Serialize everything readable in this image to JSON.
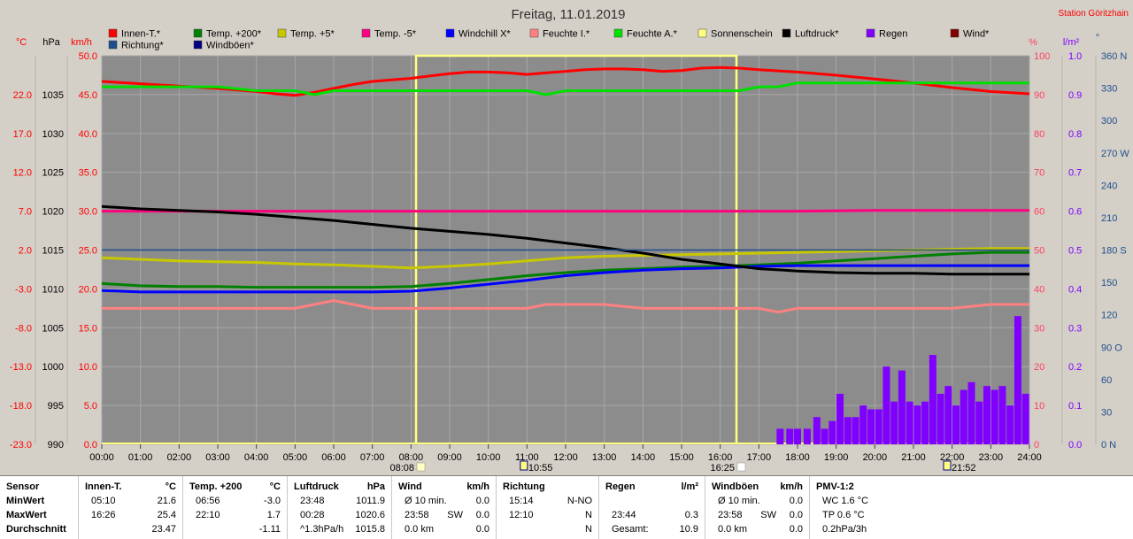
{
  "title": "Freitag, 11.01.2019",
  "station": "Station Göritzhain",
  "legend": [
    {
      "label": "Innen-T.*",
      "color": "#ff0000"
    },
    {
      "label": "Temp. +200*",
      "color": "#008000"
    },
    {
      "label": "Temp. +5*",
      "color": "#c8c800"
    },
    {
      "label": "Temp. -5*",
      "color": "#ff0080"
    },
    {
      "label": "Windchill X*",
      "color": "#0000ff"
    },
    {
      "label": "Feuchte I.*",
      "color": "#ff8080"
    },
    {
      "label": "Feuchte A.*",
      "color": "#00e000"
    },
    {
      "label": "Sonnenschein",
      "color": "#ffff80"
    },
    {
      "label": "Luftdruck*",
      "color": "#000000"
    },
    {
      "label": "Regen",
      "color": "#8000ff"
    },
    {
      "label": "Wind*",
      "color": "#800000"
    },
    {
      "label": "Richtung*",
      "color": "#1f4e8c"
    },
    {
      "label": "Windböen*",
      "color": "#000080"
    }
  ],
  "axes": {
    "temp": {
      "unit": "°C",
      "ticks": [
        "22.0",
        "17.0",
        "12.0",
        "7.0",
        "2.0",
        "-3.0",
        "-8.0",
        "-13.0",
        "-18.0",
        "-23.0"
      ],
      "min": -23.0,
      "max": 27.0,
      "color": "#ff0000"
    },
    "pressure": {
      "unit": "hPa",
      "ticks": [
        "1035",
        "1030",
        "1025",
        "1020",
        "1015",
        "1010",
        "1005",
        "1000",
        "995",
        "990"
      ],
      "min": 990,
      "max": 1040,
      "color": "#000000"
    },
    "wind": {
      "unit": "km/h",
      "ticks": [
        "50.0",
        "45.0",
        "40.0",
        "35.0",
        "30.0",
        "25.0",
        "20.0",
        "15.0",
        "10.0",
        "5.0",
        "0.0"
      ],
      "min": 0,
      "max": 50,
      "color": "#ff0000"
    },
    "humidity": {
      "unit": "%",
      "ticks": [
        "100",
        "90",
        "80",
        "70",
        "60",
        "50",
        "40",
        "30",
        "20",
        "10",
        "0"
      ],
      "min": 0,
      "max": 100,
      "color": "#ff4060"
    },
    "rain": {
      "unit": "l/m²",
      "ticks": [
        "1.0",
        "0.9",
        "0.8",
        "0.7",
        "0.6",
        "0.5",
        "0.4",
        "0.3",
        "0.2",
        "0.1",
        "0.0"
      ],
      "min": 0,
      "max": 1.0,
      "color": "#8000ff"
    },
    "direction": {
      "unit": "°",
      "ticks": [
        "360 N",
        "330",
        "300",
        "270 W",
        "240",
        "210",
        "180 S",
        "150",
        "120",
        "90 O",
        "60",
        "30",
        "0 N"
      ],
      "min": 0,
      "max": 360,
      "color": "#1f4e8c"
    },
    "time": {
      "ticks": [
        "00:00",
        "01:00",
        "02:00",
        "03:00",
        "04:00",
        "05:00",
        "06:00",
        "07:00",
        "08:00",
        "09:00",
        "10:00",
        "11:00",
        "12:00",
        "13:00",
        "14:00",
        "15:00",
        "16:00",
        "17:00",
        "18:00",
        "19:00",
        "20:00",
        "21:00",
        "22:00",
        "23:00",
        "24:00"
      ],
      "min": 0,
      "max": 24
    }
  },
  "time_markers": [
    {
      "label": "08:08",
      "hour": 8.13
    },
    {
      "label": "10:55",
      "hour": 10.92
    },
    {
      "label": "16:25",
      "hour": 16.42
    },
    {
      "label": "21:52",
      "hour": 21.87
    }
  ],
  "chart_data": {
    "type": "line",
    "x_unit": "hour",
    "series": [
      {
        "name": "Innen-T.*",
        "axis": "temp",
        "color": "#ff0000",
        "x": [
          0,
          1,
          2,
          3,
          4,
          4.5,
          5,
          5.5,
          6,
          6.5,
          7,
          7.5,
          8,
          8.5,
          9,
          9.5,
          10,
          10.5,
          11,
          11.5,
          12,
          12.5,
          13,
          13.5,
          14,
          14.5,
          15,
          15.5,
          16,
          16.5,
          17,
          18,
          19,
          20,
          21,
          22,
          23,
          24
        ],
        "values": [
          23.7,
          23.4,
          23.1,
          22.8,
          22.4,
          22.1,
          21.9,
          22.3,
          22.8,
          23.3,
          23.7,
          23.9,
          24.1,
          24.4,
          24.7,
          24.9,
          24.9,
          24.8,
          24.6,
          24.8,
          25.0,
          25.2,
          25.3,
          25.3,
          25.2,
          25.0,
          25.1,
          25.4,
          25.5,
          25.4,
          25.2,
          24.9,
          24.5,
          24.0,
          23.5,
          22.9,
          22.4,
          22.1
        ]
      },
      {
        "name": "Temp. +200*",
        "axis": "temp",
        "color": "#008000",
        "x": [
          0,
          1,
          2,
          3,
          4,
          5,
          6,
          7,
          8,
          9,
          10,
          11,
          12,
          13,
          14,
          15,
          16,
          17,
          18,
          19,
          20,
          21,
          22,
          23,
          24
        ],
        "values": [
          -2.3,
          -2.6,
          -2.7,
          -2.7,
          -2.8,
          -2.8,
          -2.8,
          -2.8,
          -2.7,
          -2.3,
          -1.8,
          -1.3,
          -0.9,
          -0.6,
          -0.4,
          -0.2,
          -0.1,
          0.1,
          0.3,
          0.6,
          0.9,
          1.2,
          1.5,
          1.7,
          1.7
        ]
      },
      {
        "name": "Temp. +5*",
        "axis": "temp",
        "color": "#c8c800",
        "x": [
          0,
          1,
          2,
          3,
          4,
          5,
          6,
          7,
          8,
          9,
          10,
          11,
          12,
          13,
          14,
          15,
          16,
          17,
          18,
          19,
          20,
          21,
          22,
          23,
          24
        ],
        "values": [
          1.0,
          0.8,
          0.6,
          0.5,
          0.4,
          0.2,
          0.1,
          -0.1,
          -0.3,
          -0.1,
          0.2,
          0.6,
          1.0,
          1.2,
          1.3,
          1.4,
          1.5,
          1.6,
          1.7,
          1.8,
          1.9,
          2.0,
          2.1,
          2.2,
          2.2
        ]
      },
      {
        "name": "Temp. -5*",
        "axis": "temp",
        "color": "#ff0080",
        "x": [
          0,
          2,
          4,
          6,
          8,
          10,
          12,
          14,
          16,
          18,
          20,
          22,
          24
        ],
        "values": [
          7.0,
          7.0,
          7.0,
          7.0,
          7.0,
          7.0,
          7.0,
          7.0,
          7.0,
          7.0,
          7.1,
          7.1,
          7.1
        ]
      },
      {
        "name": "Windchill X*",
        "axis": "temp",
        "color": "#0000ff",
        "x": [
          0,
          1,
          2,
          3,
          4,
          5,
          6,
          7,
          8,
          9,
          10,
          11,
          12,
          13,
          14,
          15,
          16,
          17,
          18,
          19,
          20,
          21,
          22,
          23,
          24
        ],
        "values": [
          -3.2,
          -3.4,
          -3.4,
          -3.4,
          -3.4,
          -3.4,
          -3.4,
          -3.4,
          -3.3,
          -2.9,
          -2.4,
          -1.9,
          -1.3,
          -0.9,
          -0.6,
          -0.4,
          -0.3,
          -0.1,
          0.0,
          0.0,
          0.0,
          0.0,
          0.0,
          0.0,
          0.0
        ]
      },
      {
        "name": "Feuchte I.*",
        "axis": "humidity",
        "color": "#ff8080",
        "x": [
          0,
          2,
          4,
          5,
          5.5,
          6,
          6.5,
          7,
          8,
          9,
          10,
          10.5,
          11,
          11.5,
          12,
          13,
          14,
          15,
          16,
          16.5,
          17,
          17.5,
          18,
          19,
          20,
          21,
          22,
          23,
          24
        ],
        "values": [
          35,
          35,
          35,
          35,
          36,
          37,
          36,
          35,
          35,
          35,
          35,
          35,
          35,
          36,
          36,
          36,
          35,
          35,
          35,
          35,
          35,
          34,
          35,
          35,
          35,
          35,
          35,
          36,
          36
        ]
      },
      {
        "name": "Feuchte A.*",
        "axis": "humidity",
        "color": "#00e000",
        "x": [
          0,
          1,
          2,
          3,
          4,
          5,
          5.5,
          6,
          7,
          8,
          9,
          10,
          11,
          11.5,
          12,
          13,
          14,
          15,
          16,
          16.5,
          17,
          17.5,
          18,
          19,
          20,
          21,
          22,
          23,
          24
        ],
        "values": [
          92,
          92,
          92,
          92,
          91,
          91,
          90,
          91,
          91,
          91,
          91,
          91,
          91,
          90,
          91,
          91,
          91,
          91,
          91,
          91,
          92,
          92,
          93,
          93,
          93,
          93,
          93,
          93,
          93
        ]
      },
      {
        "name": "Luftdruck*",
        "axis": "pressure",
        "color": "#000000",
        "x": [
          0,
          1,
          2,
          3,
          4,
          5,
          6,
          7,
          8,
          9,
          10,
          11,
          12,
          13,
          14,
          15,
          16,
          17,
          18,
          19,
          20,
          21,
          22,
          23,
          24
        ],
        "values": [
          1020.6,
          1020.3,
          1020.1,
          1019.9,
          1019.6,
          1019.2,
          1018.8,
          1018.3,
          1017.8,
          1017.4,
          1017.0,
          1016.5,
          1015.9,
          1015.3,
          1014.6,
          1013.8,
          1013.2,
          1012.6,
          1012.3,
          1012.1,
          1012.0,
          1012.0,
          1011.9,
          1011.9,
          1011.9
        ]
      },
      {
        "name": "Richtung*",
        "axis": "direction",
        "color": "#1f4e8c",
        "x": [
          0,
          24
        ],
        "values": [
          180,
          180
        ]
      }
    ],
    "sunshine": {
      "name": "Sonnenschein",
      "color": "#ffff80",
      "start": 8.13,
      "end": 16.42,
      "level": 100,
      "axis": "humidity"
    },
    "rain_bars": {
      "name": "Regen",
      "axis": "rain",
      "color": "#8000ff",
      "x": [
        17.55,
        17.8,
        18.0,
        18.25,
        18.5,
        18.7,
        18.9,
        19.1,
        19.3,
        19.5,
        19.7,
        19.9,
        20.1,
        20.3,
        20.5,
        20.7,
        20.9,
        21.1,
        21.3,
        21.5,
        21.7,
        21.9,
        22.1,
        22.3,
        22.5,
        22.7,
        22.9,
        23.1,
        23.3,
        23.5,
        23.7,
        23.9
      ],
      "values": [
        0.04,
        0.04,
        0.04,
        0.04,
        0.07,
        0.04,
        0.06,
        0.13,
        0.07,
        0.07,
        0.1,
        0.09,
        0.09,
        0.2,
        0.11,
        0.19,
        0.11,
        0.1,
        0.11,
        0.23,
        0.13,
        0.15,
        0.1,
        0.14,
        0.16,
        0.11,
        0.15,
        0.14,
        0.15,
        0.1,
        0.33,
        0.13
      ]
    },
    "reference_line": {
      "axis": "direction",
      "value": 180
    }
  },
  "summary": {
    "columns": [
      {
        "header": "Sensor",
        "unit": "",
        "rows": [
          [
            "MinWert",
            "",
            ""
          ],
          [
            "MaxWert",
            "",
            ""
          ],
          [
            "Durchschnitt",
            "",
            ""
          ]
        ]
      },
      {
        "header": "Innen-T.",
        "unit": "°C",
        "rows": [
          [
            "05:10",
            "",
            "21.6"
          ],
          [
            "16:26",
            "",
            "25.4"
          ],
          [
            "",
            "",
            "23.47"
          ]
        ]
      },
      {
        "header": "Temp. +200",
        "unit": "°C",
        "rows": [
          [
            "06:56",
            "",
            "-3.0"
          ],
          [
            "22:10",
            "",
            "1.7"
          ],
          [
            "",
            "",
            "-1.11"
          ]
        ]
      },
      {
        "header": "Luftdruck",
        "unit": "hPa",
        "rows": [
          [
            "23:48",
            "",
            "1011.9"
          ],
          [
            "00:28",
            "",
            "1020.6"
          ],
          [
            "^1.3hPa/h",
            "",
            "1015.8"
          ]
        ]
      },
      {
        "header": "Wind",
        "unit": "km/h",
        "rows": [
          [
            "Ø 10 min.",
            "",
            "0.0"
          ],
          [
            "23:58",
            "SW",
            "0.0"
          ],
          [
            "0.0 km",
            "",
            "0.0"
          ]
        ]
      },
      {
        "header": "Richtung",
        "unit": "",
        "rows": [
          [
            "15:14",
            "",
            "N-NO"
          ],
          [
            "12:10",
            "",
            "N"
          ],
          [
            "",
            "",
            "N"
          ]
        ]
      },
      {
        "header": "Regen",
        "unit": "l/m²",
        "rows": [
          [
            "",
            "",
            ""
          ],
          [
            "23:44",
            "",
            "0.3"
          ],
          [
            "Gesamt:",
            "",
            "10.9"
          ]
        ]
      },
      {
        "header": "Windböen",
        "unit": "km/h",
        "rows": [
          [
            "Ø 10 min.",
            "",
            "0.0"
          ],
          [
            "23:58",
            "SW",
            "0.0"
          ],
          [
            "0.0 km",
            "",
            "0.0"
          ]
        ]
      },
      {
        "header": "PMV-1:2",
        "unit": "",
        "rows": [
          [
            "WC 1.6 °C",
            "",
            ""
          ],
          [
            "TP 0.6 °C",
            "",
            ""
          ],
          [
            "0.2hPa/3h",
            "",
            ""
          ]
        ]
      }
    ]
  }
}
